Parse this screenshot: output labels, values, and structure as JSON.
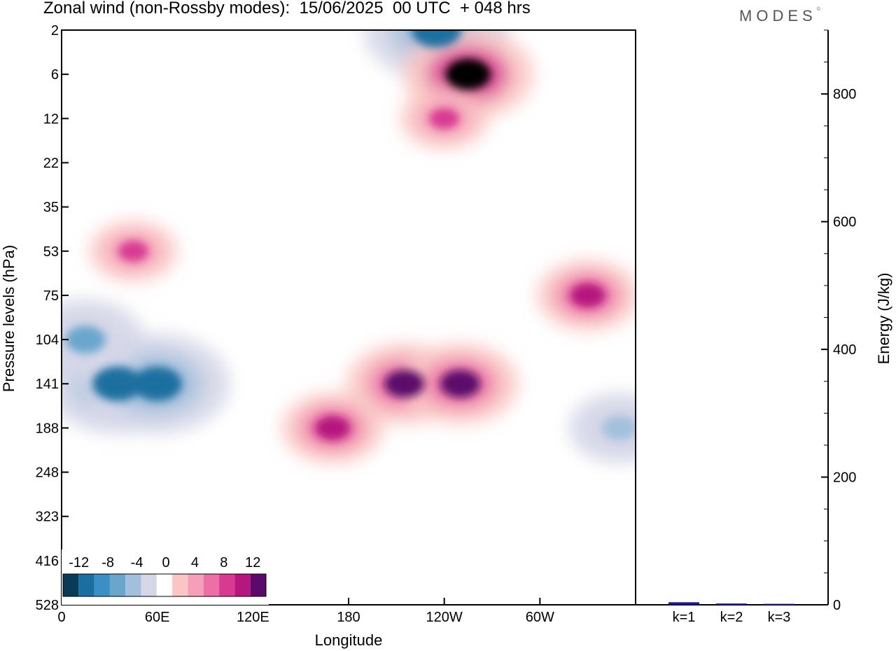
{
  "header": {
    "title": "Zonal wind (non-Rossby modes):  15/06/2025  00 UTC  + 048 hrs",
    "logo_text": "MODES",
    "logo_mark": "©"
  },
  "chart_data": [
    {
      "type": "heatmap",
      "variable": "Zonal wind (non-Rossby modes)",
      "xlabel": "Longitude",
      "ylabel": "Pressure levels (hPa)",
      "x_ticks": [
        "0",
        "60E",
        "120E",
        "180",
        "120W",
        "60W"
      ],
      "x_tick_degrees": [
        0,
        60,
        120,
        180,
        240,
        300
      ],
      "xlim_degrees": [
        0,
        360
      ],
      "y_ticks": [
        "2",
        "6",
        "12",
        "22",
        "35",
        "53",
        "75",
        "104",
        "141",
        "188",
        "248",
        "323",
        "416",
        "528"
      ],
      "colorbar": {
        "labels": [
          "-12",
          "-8",
          "-4",
          "0",
          "4",
          "8",
          "12"
        ],
        "levels": [
          -14,
          -12,
          -10,
          -8,
          -6,
          -4,
          -2,
          2,
          4,
          6,
          8,
          10,
          12,
          14
        ],
        "colors": [
          "#0b3a56",
          "#1a6fa0",
          "#3a8fc4",
          "#6aa6cc",
          "#a3bfdc",
          "#d5d7e8",
          "#ffffff",
          "#f9c6c4",
          "#f59fb8",
          "#ec6fa6",
          "#d83a92",
          "#b5177e",
          "#5b0a6b"
        ]
      },
      "features": [
        {
          "lon": 35,
          "level": "141",
          "value": -14,
          "sign": "negative"
        },
        {
          "lon": 60,
          "level": "141",
          "value": -14,
          "sign": "negative"
        },
        {
          "lon": 15,
          "level": "104",
          "value": -10,
          "sign": "negative"
        },
        {
          "lon": 350,
          "level": "188",
          "value": -8,
          "sign": "negative"
        },
        {
          "lon": 235,
          "level": "2",
          "value": -14,
          "sign": "negative"
        },
        {
          "lon": 255,
          "level": "6",
          "value": 12,
          "sign": "positive"
        },
        {
          "lon": 215,
          "level": "141",
          "value": 10,
          "sign": "positive"
        },
        {
          "lon": 250,
          "level": "141",
          "value": 10,
          "sign": "positive"
        },
        {
          "lon": 170,
          "level": "188",
          "value": 8,
          "sign": "positive"
        },
        {
          "lon": 330,
          "level": "75",
          "value": 8,
          "sign": "positive"
        },
        {
          "lon": 240,
          "level": "12",
          "value": 6,
          "sign": "positive"
        },
        {
          "lon": 45,
          "level": "53",
          "value": 6,
          "sign": "positive"
        }
      ]
    },
    {
      "type": "bar",
      "categories": [
        "k=1",
        "k=2",
        "k=3"
      ],
      "values": [
        4,
        2,
        1.5
      ],
      "ylabel": "Energy (J/kg)",
      "y_ticks": [
        "0",
        "200",
        "400",
        "600",
        "800"
      ],
      "ylim": [
        0,
        900
      ],
      "bar_color": "#1a1a8c"
    }
  ]
}
